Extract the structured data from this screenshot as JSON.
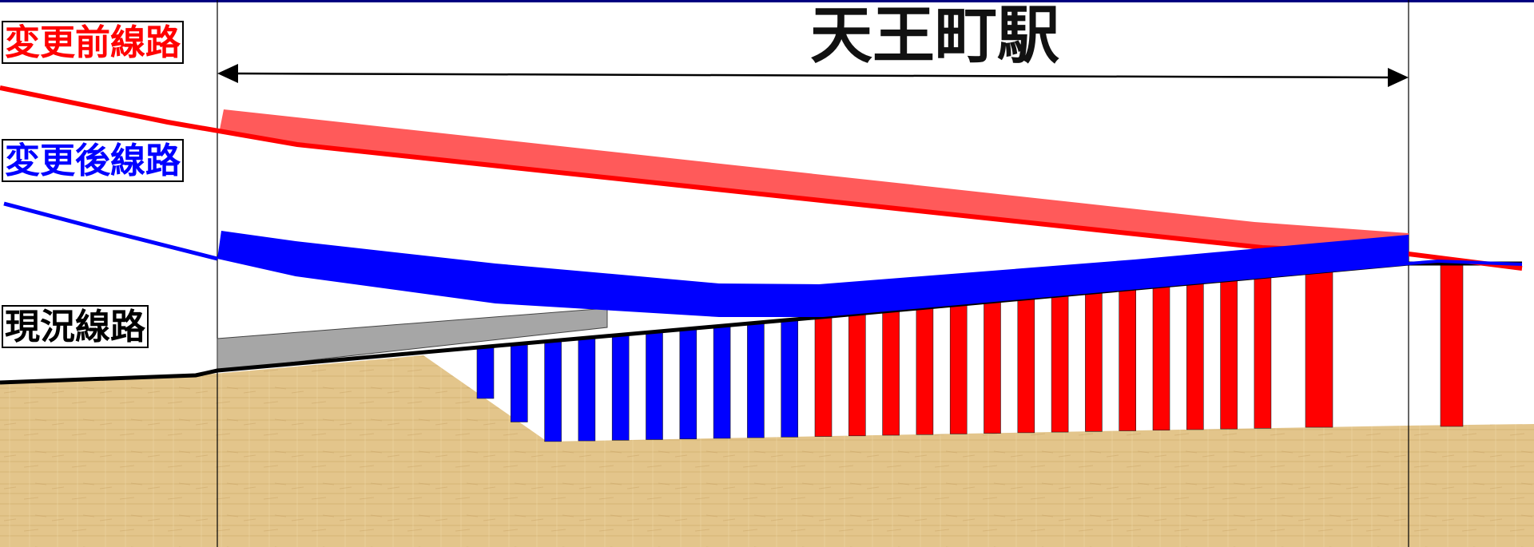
{
  "station": {
    "name": "天王町駅"
  },
  "legend": [
    {
      "label": "変更前線路",
      "color": "#ff0000"
    },
    {
      "label": "変更後線路",
      "color": "#0000ff"
    },
    {
      "label": "現況線路",
      "color": "#000000"
    }
  ],
  "colors": {
    "top_border": "#000080",
    "ground": "#e3c58b",
    "existing_viaduct": "#a6a6a6",
    "planned_before_deck": "#ff5a5a",
    "planned_after_deck": "#0000ff",
    "pier_blue": "#0000ff",
    "pier_red": "#ff0000"
  }
}
